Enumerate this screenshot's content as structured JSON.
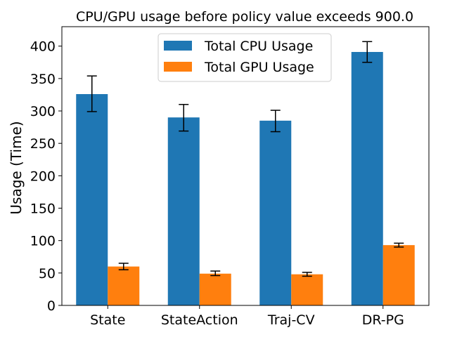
{
  "chart_data": {
    "type": "bar",
    "title": "CPU/GPU usage before policy value exceeds 900.0",
    "xlabel": "",
    "ylabel": "Usage (Time)",
    "categories": [
      "State",
      "StateAction",
      "Traj-CV",
      "DR-PG"
    ],
    "series": [
      {
        "name": "Total CPU Usage",
        "color": "#1f77b4",
        "values": [
          326,
          290,
          285,
          391
        ],
        "errors": [
          [
            27,
            28
          ],
          [
            21,
            20
          ],
          [
            17,
            16
          ],
          [
            16,
            16
          ]
        ]
      },
      {
        "name": "Total GPU Usage",
        "color": "#ff7f0e",
        "values": [
          60,
          49,
          48,
          93
        ],
        "errors": [
          [
            5,
            5
          ],
          [
            3,
            4
          ],
          [
            3,
            3
          ],
          [
            3,
            3
          ]
        ]
      }
    ],
    "ylim": [
      0,
      430
    ],
    "yticks": [
      0,
      50,
      100,
      150,
      200,
      250,
      300,
      350,
      400
    ],
    "legend_position": "top-center",
    "grid": false
  }
}
